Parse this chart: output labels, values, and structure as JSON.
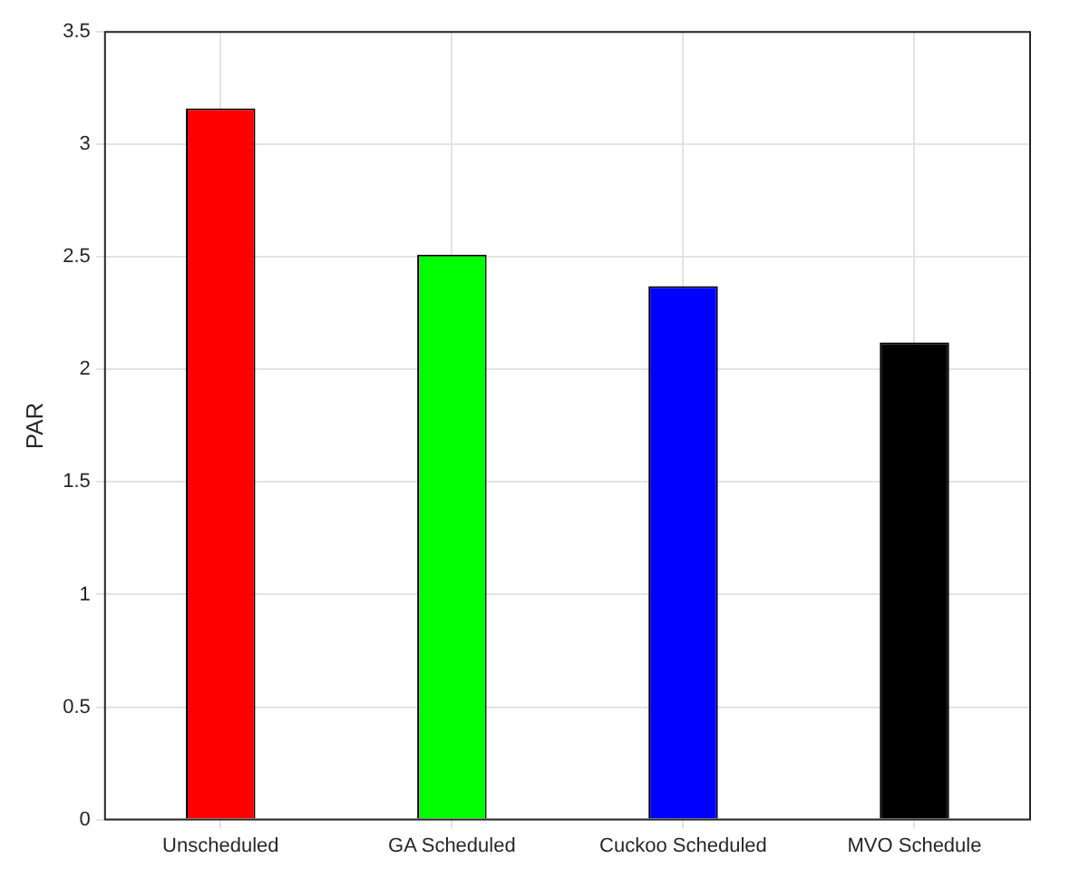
{
  "chart_data": {
    "type": "bar",
    "ylabel": "PAR",
    "categories": [
      "Unscheduled",
      "GA Scheduled",
      "Cuckoo Scheduled",
      "MVO Schedule"
    ],
    "values": [
      3.16,
      2.51,
      2.37,
      2.12
    ],
    "colors": [
      "#ff0000",
      "#00ff00",
      "#0000ff",
      "#000000"
    ],
    "ylim": [
      0,
      3.5
    ],
    "yticks": [
      0,
      0.5,
      1,
      1.5,
      2,
      2.5,
      3,
      3.5
    ],
    "grid": true
  }
}
